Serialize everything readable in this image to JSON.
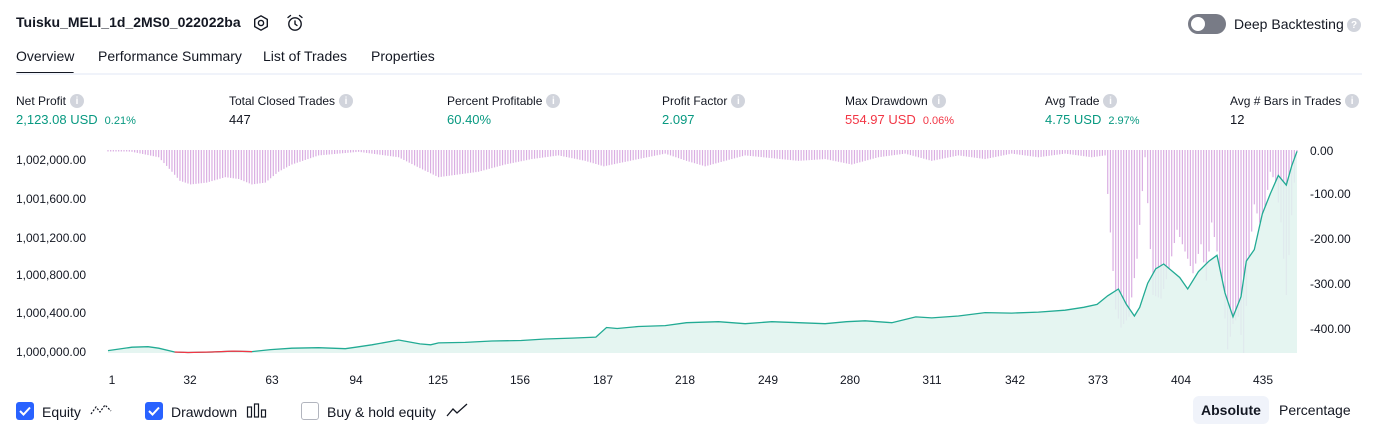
{
  "header": {
    "strategy_title": "Tuisku_MELI_1d_2MS0_022022ba",
    "deep_backtesting_label": "Deep Backtesting",
    "deep_backtesting_enabled": false,
    "help_glyph": "?"
  },
  "tabs": [
    {
      "label": "Overview",
      "active": true
    },
    {
      "label": "Performance Summary",
      "active": false
    },
    {
      "label": "List of Trades",
      "active": false
    },
    {
      "label": "Properties",
      "active": false
    }
  ],
  "metrics": [
    {
      "label": "Net Profit",
      "value": "2,123.08 USD",
      "pct": "0.21%"
    },
    {
      "label": "Total Closed Trades",
      "value": "447",
      "pct": ""
    },
    {
      "label": "Percent Profitable",
      "value": "60.40%",
      "pct": ""
    },
    {
      "label": "Profit Factor",
      "value": "2.097",
      "pct": ""
    },
    {
      "label": "Max Drawdown",
      "value": "554.97 USD",
      "pct": "0.06%"
    },
    {
      "label": "Avg Trade",
      "value": "4.75 USD",
      "pct": "2.97%"
    },
    {
      "label": "Avg # Bars in Trades",
      "value": "12",
      "pct": ""
    }
  ],
  "colors": {
    "positive": "#089981",
    "negative": "#f23645",
    "equity_line": "#22ab94",
    "equity_fill": "#e0f3ef",
    "equity_below": "#f23645",
    "drawdown_bars": "#ce93d8",
    "accent": "#2962ff"
  },
  "chart_data": {
    "type": "area",
    "left_axis_ticks": [
      "1,002,000.00",
      "1,001,600.00",
      "1,001,200.00",
      "1,000,800.00",
      "1,000,400.00",
      "1,000,000.00"
    ],
    "right_axis_ticks": [
      "0.00",
      "-100.00",
      "-200.00",
      "-300.00",
      "-400.00"
    ],
    "x_ticks": [
      "1",
      "32",
      "63",
      "94",
      "125",
      "156",
      "187",
      "218",
      "249",
      "280",
      "311",
      "342",
      "373",
      "404",
      "435"
    ],
    "ylim_equity": [
      999975,
      1002085
    ],
    "ylim_drawdown": [
      -560,
      0
    ],
    "xlim": [
      1,
      447
    ],
    "equity_series": {
      "x": [
        1,
        10,
        16,
        20,
        26,
        31,
        40,
        48,
        55,
        62,
        70,
        80,
        90,
        94,
        100,
        110,
        118,
        122,
        125,
        135,
        145,
        156,
        165,
        175,
        184,
        188,
        192,
        200,
        210,
        218,
        230,
        240,
        250,
        260,
        270,
        278,
        285,
        295,
        304,
        310,
        320,
        330,
        340,
        350,
        360,
        367,
        372,
        376,
        380,
        383,
        386,
        388,
        391,
        394,
        397,
        400,
        403,
        406,
        410,
        414,
        417,
        420,
        423,
        426,
        428,
        431,
        434,
        437,
        440,
        443,
        445,
        447
      ],
      "y": [
        1000000,
        1000035,
        1000040,
        1000025,
        999985,
        999980,
        999985,
        999995,
        999990,
        1000010,
        1000025,
        1000030,
        1000020,
        1000035,
        1000060,
        1000110,
        1000070,
        1000060,
        1000080,
        1000085,
        1000100,
        1000105,
        1000120,
        1000130,
        1000140,
        1000240,
        1000230,
        1000250,
        1000260,
        1000290,
        1000300,
        1000280,
        1000300,
        1000290,
        1000280,
        1000300,
        1000310,
        1000290,
        1000350,
        1000340,
        1000360,
        1000395,
        1000390,
        1000400,
        1000420,
        1000450,
        1000480,
        1000570,
        1000640,
        1000480,
        1000360,
        1000450,
        1000700,
        1000850,
        1000900,
        1000830,
        1000760,
        1000640,
        1000820,
        1000930,
        1000990,
        1000600,
        1000350,
        1000560,
        1000930,
        1001050,
        1001420,
        1001630,
        1001820,
        1001720,
        1001920,
        1002070
      ]
    },
    "drawdown_series": {
      "x": [
        1,
        10,
        20,
        25,
        28,
        32,
        38,
        45,
        50,
        55,
        60,
        65,
        70,
        80,
        95,
        110,
        118,
        125,
        130,
        140,
        150,
        160,
        170,
        180,
        187,
        200,
        210,
        218,
        225,
        230,
        240,
        260,
        270,
        280,
        290,
        300,
        310,
        320,
        330,
        340,
        350,
        360,
        370,
        375,
        379,
        381,
        384,
        387,
        390,
        393,
        396,
        399,
        402,
        405,
        408,
        411,
        413,
        415,
        417,
        419,
        421,
        423,
        425,
        427,
        429,
        431,
        433,
        435,
        437,
        439,
        441,
        443,
        445,
        447
      ],
      "y": [
        0,
        -5,
        -20,
        -60,
        -85,
        -95,
        -90,
        -75,
        -80,
        -95,
        -90,
        -60,
        -40,
        -15,
        -5,
        -20,
        -50,
        -75,
        -70,
        -60,
        -40,
        -25,
        -15,
        -30,
        -45,
        -25,
        -10,
        -30,
        -45,
        -35,
        -15,
        -30,
        -25,
        -40,
        -20,
        -10,
        -30,
        -15,
        -25,
        -10,
        -20,
        -10,
        -20,
        -15,
        -440,
        -490,
        -460,
        -300,
        -20,
        -400,
        -410,
        -330,
        -220,
        -280,
        -340,
        -260,
        -360,
        -200,
        -280,
        -380,
        -550,
        -480,
        -460,
        -560,
        -300,
        -150,
        -200,
        -160,
        -60,
        -90,
        -200,
        -400,
        -180,
        0
      ]
    }
  },
  "legend": {
    "equity_label": "Equity",
    "drawdown_label": "Drawdown",
    "buyhold_label": "Buy & hold equity",
    "equity_checked": true,
    "drawdown_checked": true,
    "buyhold_checked": false
  },
  "scale_toggle": {
    "absolute_label": "Absolute",
    "percentage_label": "Percentage",
    "active": "absolute"
  }
}
